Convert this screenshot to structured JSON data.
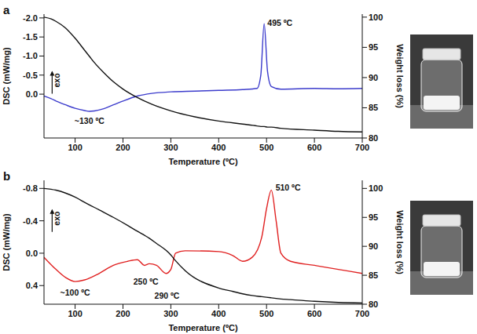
{
  "chart_data": [
    {
      "type": "line",
      "title": "a",
      "x_label": "Temperature (ºC)",
      "y_label": "DSC (mW/mg)",
      "y2_label": "Weight loss (%)",
      "x": [
        35,
        50,
        60,
        80,
        100,
        120,
        130,
        140,
        160,
        180,
        200,
        230,
        260,
        300,
        350,
        400,
        450,
        480,
        488,
        495,
        502,
        510,
        530,
        600,
        650,
        700
      ],
      "series": [
        {
          "color": "#3c3ccc",
          "axis": "y",
          "values": [
            0.05,
            0.12,
            0.18,
            0.28,
            0.37,
            0.43,
            0.45,
            0.44,
            0.38,
            0.28,
            0.18,
            0.05,
            -0.02,
            -0.06,
            -0.08,
            -0.1,
            -0.12,
            -0.15,
            -0.5,
            -1.85,
            -0.6,
            -0.2,
            -0.13,
            -0.15,
            -0.14,
            -0.15
          ]
        },
        {
          "color": "#111111",
          "axis": "y2",
          "values": [
            100,
            99.7,
            99.3,
            98.2,
            96.5,
            94.5,
            93.5,
            92.5,
            90.8,
            89.3,
            88.1,
            86.7,
            85.6,
            84.5,
            83.5,
            82.8,
            82.3,
            82.0,
            81.9,
            81.9,
            81.8,
            81.8,
            81.6,
            81.3,
            81.1,
            81.0
          ]
        }
      ],
      "xlim": [
        35,
        700
      ],
      "xticks": [
        100,
        200,
        300,
        400,
        500,
        600,
        700
      ],
      "ylim": [
        -2.1,
        1.15
      ],
      "yticks": [
        {
          "value": -2,
          "label": "-2.0"
        },
        {
          "value": -1.5,
          "label": "-1.5"
        },
        {
          "value": -1,
          "label": "-1.0"
        },
        {
          "value": -0.5,
          "label": "-0.5"
        },
        {
          "value": 0,
          "label": "0.0"
        }
      ],
      "y2lim": [
        80,
        100.5
      ],
      "y2ticks": [
        80,
        85,
        90,
        95,
        100
      ],
      "annotations": [
        {
          "text": "~130 ºC",
          "x": 130,
          "y": 0.72
        },
        {
          "text": "495 ºC",
          "x": 528,
          "y": -1.85
        }
      ],
      "indicator": {
        "text": "exo",
        "x": 52,
        "y": -0.3
      }
    },
    {
      "type": "line",
      "title": "b",
      "x_label": "Temperature (ºC)",
      "y_label": "DSC (mW/mg)",
      "y2_label": "Weight loss (%)",
      "x": [
        35,
        60,
        80,
        100,
        120,
        150,
        180,
        210,
        230,
        245,
        255,
        270,
        290,
        300,
        310,
        330,
        400,
        430,
        450,
        470,
        490,
        500,
        510,
        520,
        530,
        550,
        600,
        650,
        700
      ],
      "series": [
        {
          "color": "#e02020",
          "axis": "y",
          "values": [
            0.05,
            0.2,
            0.3,
            0.35,
            0.33,
            0.25,
            0.15,
            0.1,
            0.08,
            0.15,
            0.13,
            0.15,
            0.25,
            0.2,
            0.0,
            -0.03,
            -0.02,
            0.03,
            0.1,
            0.05,
            -0.2,
            -0.55,
            -0.78,
            -0.4,
            0.0,
            0.1,
            0.15,
            0.2,
            0.25
          ]
        },
        {
          "color": "#111111",
          "axis": "y2",
          "values": [
            100,
            99.7,
            99.2,
            98.5,
            97.6,
            96.3,
            95,
            93.6,
            92.6,
            91.9,
            91.4,
            90.5,
            89.3,
            88.5,
            87.5,
            85.8,
            82.8,
            82.2,
            81.8,
            81.5,
            81.3,
            81.2,
            81.1,
            81.0,
            80.9,
            80.8,
            80.5,
            80.3,
            80.2
          ]
        }
      ],
      "xlim": [
        35,
        700
      ],
      "xticks": [
        100,
        200,
        300,
        400,
        500,
        600,
        700
      ],
      "ylim": [
        -0.9,
        0.63
      ],
      "yticks": [
        -0.8,
        -0.4,
        {
          "value": 0,
          "label": "0.0"
        },
        0.4
      ],
      "y2lim": [
        80,
        101.4
      ],
      "y2ticks": [
        80,
        85,
        90,
        95,
        100
      ],
      "annotations": [
        {
          "text": "~100 ºC",
          "x": 100,
          "y": 0.5
        },
        {
          "text": "250 ºC",
          "x": 248,
          "y": 0.36
        },
        {
          "text": "290 ºC",
          "x": 292,
          "y": 0.54
        },
        {
          "text": "510 ºC",
          "x": 545,
          "y": -0.8
        }
      ],
      "indicator": {
        "text": "exo",
        "x": 52,
        "y": -0.4
      }
    }
  ]
}
